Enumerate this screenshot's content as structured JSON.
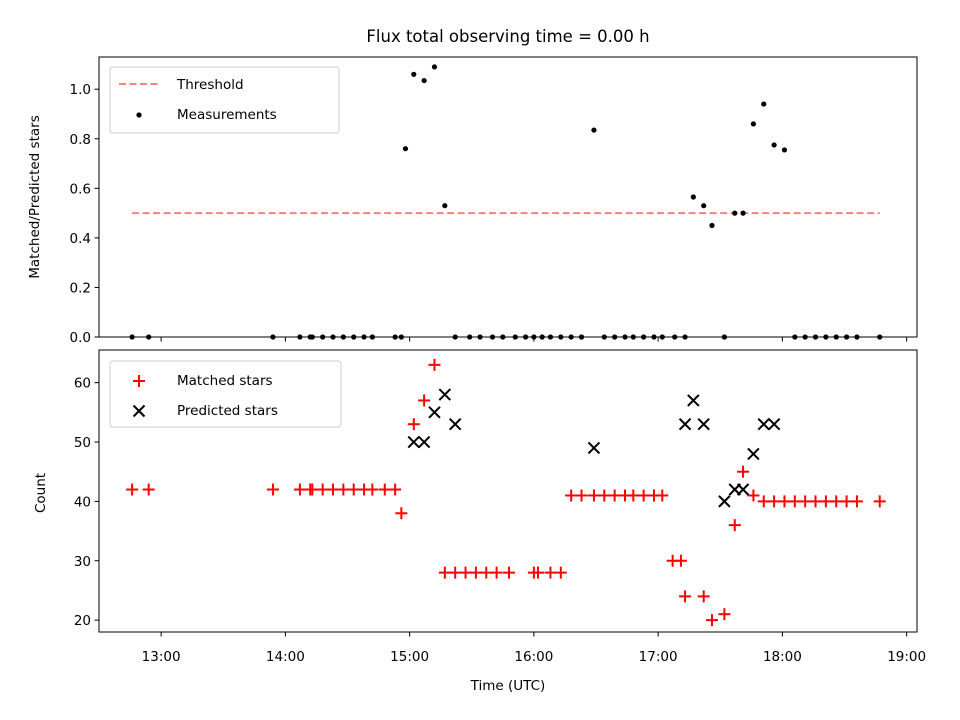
{
  "chart_data": [
    {
      "type": "scatter",
      "title": "Flux total observing time = 0.00 h",
      "xlabel": "",
      "ylabel": "Matched/Predicted stars",
      "ylim": [
        0,
        1.13
      ],
      "yticks": [
        0.0,
        0.2,
        0.4,
        0.6,
        0.8,
        1.0
      ],
      "ytick_labels": [
        "0.0",
        "0.2",
        "0.4",
        "0.6",
        "0.8",
        "1.0"
      ],
      "xlim": [
        "12:30",
        "19:05"
      ],
      "legend": "top-left",
      "grid": false,
      "series": [
        {
          "name": "Threshold",
          "kind": "dashed-line",
          "color": "#ff7f7f",
          "x": [
            "12:46",
            "18:47"
          ],
          "y": [
            0.5,
            0.5
          ]
        },
        {
          "name": "Measurements",
          "kind": "dot",
          "color": "#000000",
          "x": [
            "12:46",
            "12:54",
            "13:54",
            "14:07",
            "14:12",
            "14:13",
            "14:18",
            "14:23",
            "14:28",
            "14:33",
            "14:38",
            "14:42",
            "14:53",
            "14:56",
            "14:58",
            "15:02",
            "15:07",
            "15:12",
            "15:17",
            "15:22",
            "15:29",
            "15:34",
            "15:40",
            "15:45",
            "15:51",
            "15:56",
            "16:00",
            "16:04",
            "16:08",
            "16:13",
            "16:18",
            "16:23",
            "16:29",
            "16:34",
            "16:39",
            "16:44",
            "16:48",
            "16:53",
            "16:58",
            "17:02",
            "17:08",
            "17:13",
            "17:17",
            "17:22",
            "17:26",
            "17:32",
            "17:37",
            "17:41",
            "17:46",
            "17:51",
            "17:56",
            "18:01",
            "18:06",
            "18:11",
            "18:16",
            "18:21",
            "18:26",
            "18:31",
            "18:36",
            "18:47"
          ],
          "y": [
            0.0,
            0.0,
            0.0,
            0.0,
            0.0,
            0.0,
            0.0,
            0.0,
            0.0,
            0.0,
            0.0,
            0.0,
            0.0,
            0.0,
            0.76,
            1.06,
            1.035,
            1.09,
            0.53,
            0.0,
            0.0,
            0.0,
            0.0,
            0.0,
            0.0,
            0.0,
            0.0,
            0.0,
            0.0,
            0.0,
            0.0,
            0.0,
            0.835,
            0.0,
            0.0,
            0.0,
            0.0,
            0.0,
            0.0,
            0.0,
            0.0,
            0.0,
            0.565,
            0.53,
            0.45,
            0.0,
            0.5,
            0.5,
            0.86,
            0.94,
            0.775,
            0.755,
            0.0,
            0.0,
            0.0,
            0.0,
            0.0,
            0.0,
            0.0,
            0.0
          ]
        }
      ]
    },
    {
      "type": "scatter",
      "title": "",
      "xlabel": "Time (UTC)",
      "ylabel": "Count",
      "ylim": [
        18,
        65.5
      ],
      "yticks": [
        20,
        30,
        40,
        50,
        60
      ],
      "ytick_labels": [
        "20",
        "30",
        "40",
        "50",
        "60"
      ],
      "xlim": [
        "12:30",
        "19:05"
      ],
      "xticks": [
        "13:00",
        "14:00",
        "15:00",
        "16:00",
        "17:00",
        "18:00",
        "19:00"
      ],
      "legend": "top-left",
      "grid": false,
      "series": [
        {
          "name": "Matched stars",
          "marker": "+",
          "color": "#ff0000",
          "x": [
            "12:46",
            "12:54",
            "13:54",
            "14:07",
            "14:12",
            "14:13",
            "14:18",
            "14:23",
            "14:28",
            "14:33",
            "14:38",
            "14:42",
            "14:48",
            "14:53",
            "14:56",
            "15:02",
            "15:07",
            "15:12",
            "15:17",
            "15:22",
            "15:27",
            "15:32",
            "15:37",
            "15:42",
            "15:48",
            "16:00",
            "16:02",
            "16:08",
            "16:13",
            "16:18",
            "16:23",
            "16:29",
            "16:34",
            "16:39",
            "16:44",
            "16:48",
            "16:53",
            "16:58",
            "17:02",
            "17:07",
            "17:11",
            "17:13",
            "17:22",
            "17:26",
            "17:32",
            "17:37",
            "17:41",
            "17:46",
            "17:51",
            "17:56",
            "18:01",
            "18:06",
            "18:11",
            "18:16",
            "18:21",
            "18:26",
            "18:31",
            "18:36",
            "18:47"
          ],
          "y": [
            42,
            42,
            42,
            42,
            42,
            42,
            42,
            42,
            42,
            42,
            42,
            42,
            42,
            42,
            38,
            53,
            57,
            63,
            28,
            28,
            28,
            28,
            28,
            28,
            28,
            28,
            28,
            28,
            28,
            41,
            41,
            41,
            41,
            41,
            41,
            41,
            41,
            41,
            41,
            30,
            30,
            24,
            24,
            20,
            21,
            36,
            45,
            41,
            40,
            40,
            40,
            40,
            40,
            40,
            40,
            40,
            40,
            40,
            40
          ]
        },
        {
          "name": "Predicted stars",
          "marker": "x",
          "color": "#000000",
          "x": [
            "15:02",
            "15:07",
            "15:12",
            "15:17",
            "15:22",
            "16:29",
            "17:13",
            "17:17",
            "17:22",
            "17:32",
            "17:37",
            "17:41",
            "17:46",
            "17:51",
            "17:56"
          ],
          "y": [
            50,
            50,
            55,
            58,
            53,
            49,
            53,
            57,
            53,
            40,
            42,
            42,
            48,
            53,
            53
          ]
        }
      ]
    }
  ]
}
